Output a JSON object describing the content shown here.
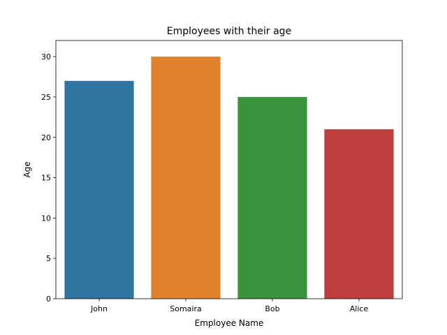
{
  "chart_data": {
    "type": "bar",
    "title": "Employees with their age",
    "xlabel": "Employee Name",
    "ylabel": "Age",
    "categories": [
      "John",
      "Somaira",
      "Bob",
      "Alice"
    ],
    "values": [
      27,
      30,
      25,
      21
    ],
    "colors": [
      "#3274a1",
      "#e1812c",
      "#3a923a",
      "#c03d3e"
    ],
    "ylim": [
      0,
      32
    ],
    "yticks": [
      0,
      5,
      10,
      15,
      20,
      25,
      30
    ],
    "grid": false,
    "legend": "none"
  }
}
